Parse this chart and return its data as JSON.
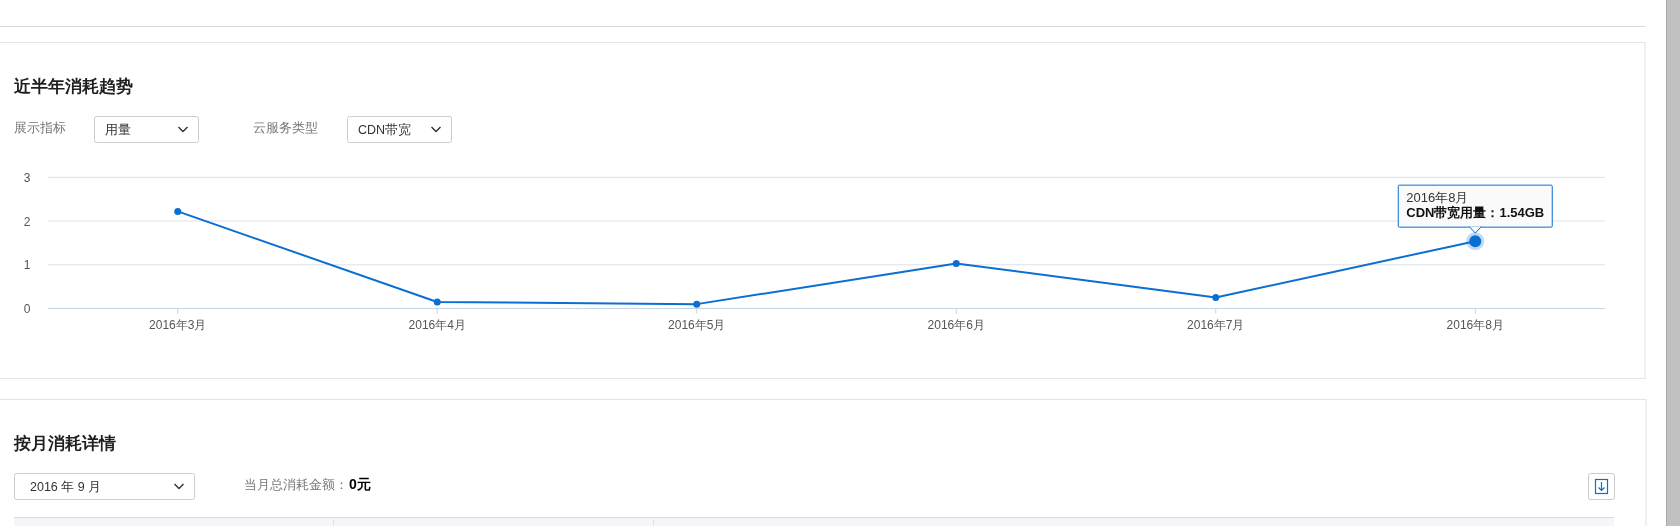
{
  "chart_data": {
    "type": "line",
    "title": "近半年消耗趋势",
    "categories": [
      "2016年3月",
      "2016年4月",
      "2016年5月",
      "2016年6月",
      "2016年7月",
      "2016年8月"
    ],
    "series": [
      {
        "color": "#0b6fd1",
        "values": [
          2.22,
          0.15,
          0.1,
          1.03,
          0.25,
          1.54
        ]
      }
    ],
    "ylim": [
      0,
      3
    ],
    "yticks": [
      0,
      1,
      2,
      3
    ],
    "grid": "y",
    "marker": "circle",
    "line_style": "solid",
    "annotations": [
      "展示指标",
      "用量",
      "云服务类型",
      "CDN带宽",
      "按月消耗详情",
      "2016 年 9 月",
      "当月总消耗金额：",
      "0元",
      {
        "text": "2016年8月",
        "x": "2016年8月",
        "y": 1.54
      },
      {
        "text": "CDN带宽用量：1.54GB",
        "x": "2016年8月",
        "y": 1.54
      }
    ]
  }
}
